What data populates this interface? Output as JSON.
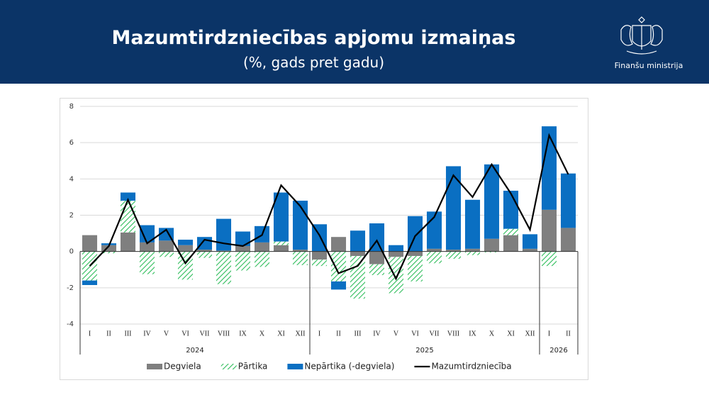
{
  "header": {
    "title": "Mazumtirdzniecības apjomu izmaiņas",
    "subtitle": "(%, gads pret gadu)",
    "organization": "Finanšu ministrija"
  },
  "chart_data": {
    "type": "bar",
    "stacked": true,
    "category_groups": [
      {
        "name": "2024",
        "categories": [
          "I",
          "II",
          "III",
          "IV",
          "V",
          "VI",
          "VII",
          "VIII",
          "IX",
          "X",
          "XI",
          "XII"
        ]
      },
      {
        "name": "2025",
        "categories": [
          "I",
          "II",
          "III",
          "IV",
          "V",
          "VI",
          "VII",
          "VIII",
          "IX",
          "X",
          "XI",
          "XII"
        ]
      },
      {
        "name": "2026",
        "categories": [
          "I",
          "II"
        ]
      }
    ],
    "series": [
      {
        "name": "Degviela",
        "color": "#7f7f7f",
        "values": [
          0.9,
          0.35,
          1.05,
          0.5,
          0.6,
          0.35,
          0.1,
          0.05,
          0.3,
          0.5,
          0.35,
          0.1,
          -0.45,
          0.8,
          -0.25,
          -0.7,
          -0.3,
          -0.25,
          0.15,
          0.1,
          0.15,
          0.7,
          0.9,
          0.15,
          2.3,
          1.3
        ]
      },
      {
        "name": "Pārtika",
        "color": "#2ebd5a",
        "pattern": "hatch",
        "values": [
          -1.6,
          -0.1,
          1.75,
          -1.25,
          -0.3,
          -1.55,
          -0.35,
          -1.8,
          -1.05,
          -0.85,
          0.2,
          -0.75,
          -0.35,
          -1.65,
          -2.35,
          -0.6,
          -2.0,
          -1.4,
          -0.65,
          -0.4,
          -0.2,
          -0.05,
          0.35,
          0,
          -0.8,
          0
        ]
      },
      {
        "name": "Nepārtika (-degviela)",
        "color": "#0a6fc2",
        "values": [
          -0.25,
          0.1,
          0.45,
          0.95,
          0.7,
          0.3,
          0.7,
          1.75,
          0.8,
          0.9,
          2.7,
          2.7,
          1.5,
          -0.45,
          1.15,
          1.55,
          0.35,
          1.95,
          2.05,
          4.6,
          2.7,
          4.1,
          2.1,
          0.8,
          4.6,
          3.0
        ]
      },
      {
        "name": "Mazumtirdzniecība",
        "color": "#000000",
        "type": "line",
        "values": [
          -0.8,
          0.3,
          2.85,
          0.45,
          1.2,
          -0.65,
          0.65,
          0.45,
          0.3,
          0.9,
          3.65,
          2.5,
          0.9,
          -1.2,
          -0.8,
          0.6,
          -1.5,
          0.85,
          1.9,
          4.2,
          3.0,
          4.8,
          3.2,
          1.2,
          6.4,
          4.25
        ]
      }
    ],
    "ylim": [
      -4,
      8
    ],
    "yticks": [
      -4,
      -2,
      0,
      2,
      4,
      6,
      8
    ],
    "grid": true,
    "legend": "bottom"
  }
}
